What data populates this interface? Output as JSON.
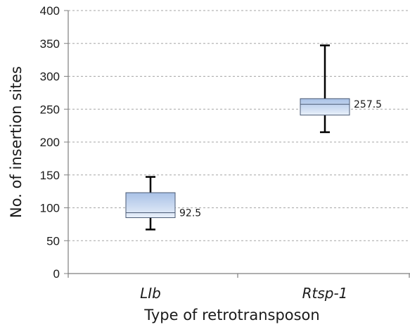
{
  "chart_data": {
    "type": "boxplot",
    "xlabel": "Type of retrotransposon",
    "ylabel": "No. of insertion sites",
    "ylim": [
      0,
      400
    ],
    "yticks": [
      0,
      50,
      100,
      150,
      200,
      250,
      300,
      350,
      400
    ],
    "grid": true,
    "categories": [
      "LIb",
      "Rtsp-1"
    ],
    "boxes": [
      {
        "category": "LIb",
        "min": 67,
        "q1": 85,
        "median": 92.5,
        "q3": 123,
        "max": 147,
        "median_label": "92.5"
      },
      {
        "category": "Rtsp-1",
        "min": 215,
        "q1": 241,
        "median": 257.5,
        "q3": 266,
        "max": 347,
        "median_label": "257.5"
      }
    ],
    "colors": {
      "box_top": "#a9c1e6",
      "box_bottom": "#e9f0fa",
      "box_border": "#4a5a74",
      "whisker": "#000000",
      "grid": "#a6a6a6",
      "axis": "#7f7f7f"
    }
  }
}
